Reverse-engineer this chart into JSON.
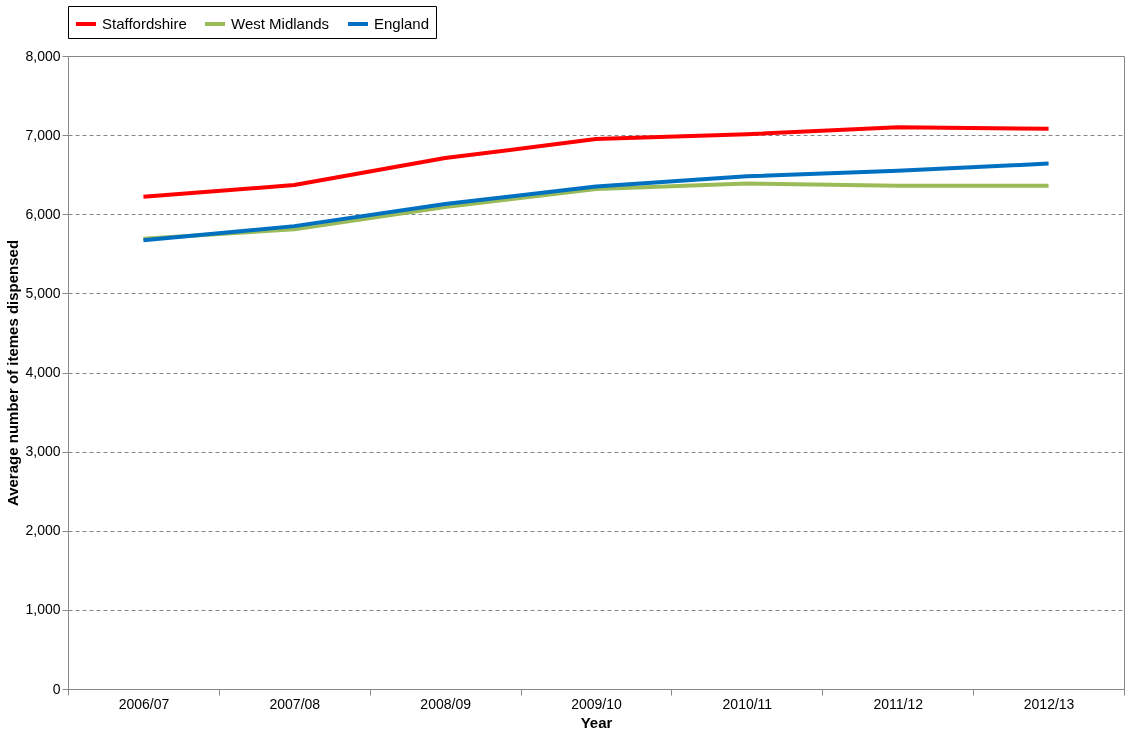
{
  "chart_data": {
    "type": "line",
    "xlabel": "Year",
    "ylabel": "Average number of itemes dispensed",
    "categories": [
      "2006/07",
      "2007/08",
      "2008/09",
      "2009/10",
      "2010/11",
      "2011/12",
      "2012/13"
    ],
    "series": [
      {
        "name": "Staffordshire",
        "color": "#ff0000",
        "values": [
          6220,
          6370,
          6710,
          6950,
          7010,
          7100,
          7080
        ]
      },
      {
        "name": "West Midlands",
        "color": "#9bbb59",
        "values": [
          5690,
          5810,
          6090,
          6320,
          6390,
          6360,
          6360
        ]
      },
      {
        "name": "England",
        "color": "#0070c0",
        "values": [
          5670,
          5850,
          6130,
          6350,
          6480,
          6550,
          6640
        ]
      }
    ],
    "ylim": [
      0,
      8000
    ],
    "yticks": [
      0,
      {
        "value": 1000,
        "label": "1,000"
      },
      {
        "value": 2000,
        "label": "2,000"
      },
      {
        "value": 3000,
        "label": "3,000"
      },
      {
        "value": 4000,
        "label": "4,000"
      },
      {
        "value": 5000,
        "label": "5,000"
      },
      {
        "value": 6000,
        "label": "6,000"
      },
      {
        "value": 7000,
        "label": "7,000"
      },
      {
        "value": 8000,
        "label": "8,000"
      }
    ],
    "grid": "y",
    "legend": "top",
    "marker": "none",
    "line_style": "solid"
  }
}
